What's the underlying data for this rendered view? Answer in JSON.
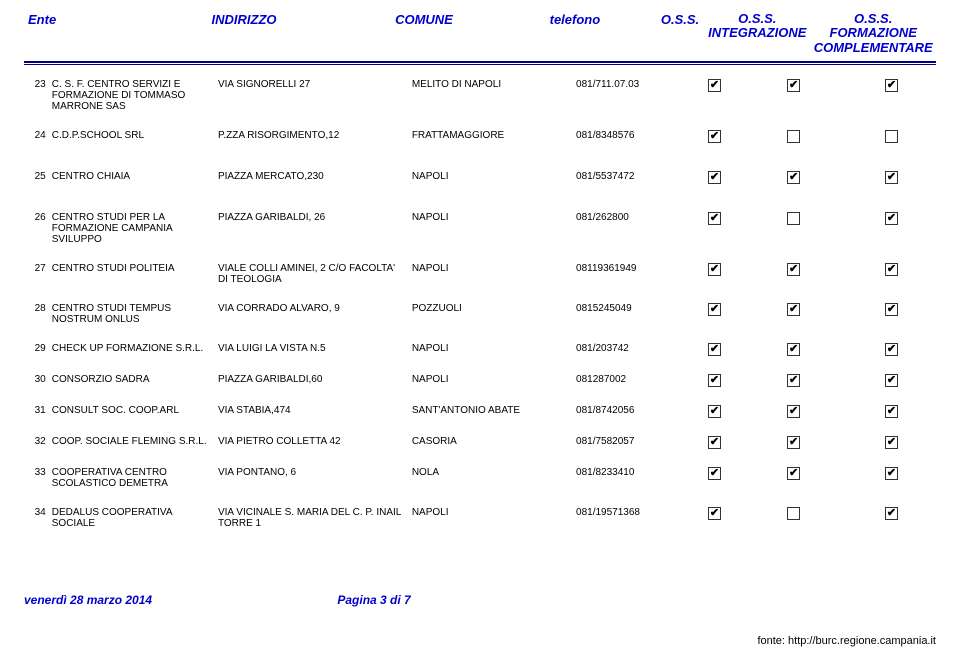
{
  "header": {
    "ente": "Ente",
    "indirizzo": "INDIRIZZO",
    "comune": "COMUNE",
    "telefono": "telefono",
    "oss": "O.S.S.",
    "integrazione_line1": "O.S.S.",
    "integrazione_line2": "INTEGRAZIONE",
    "complementare_line1": "O.S.S. FORMAZIONE",
    "complementare_line2": "COMPLEMENTARE"
  },
  "rows": [
    {
      "n": "23",
      "ente": "C. S. F. CENTRO SERVIZI E FORMAZIONE DI TOMMASO MARRONE SAS",
      "addr": "VIA SIGNORELLI 27",
      "comune": "MELITO DI NAPOLI",
      "tel": "081/711.07.03",
      "c1": true,
      "c2": true,
      "c3": true
    },
    {
      "n": "24",
      "ente": "C.D.P.SCHOOL SRL",
      "addr": "P.ZZA RISORGIMENTO,12",
      "comune": "FRATTAMAGGIORE",
      "tel": "081/8348576",
      "c1": true,
      "c2": false,
      "c3": false
    },
    {
      "n": "25",
      "ente": "CENTRO CHIAIA",
      "addr": "PIAZZA MERCATO,230",
      "comune": "NAPOLI",
      "tel": "081/5537472",
      "c1": true,
      "c2": true,
      "c3": true
    },
    {
      "n": "26",
      "ente": "CENTRO STUDI PER LA FORMAZIONE CAMPANIA SVILUPPO",
      "addr": "PIAZZA GARIBALDI, 26",
      "comune": "NAPOLI",
      "tel": "081/262800",
      "c1": true,
      "c2": false,
      "c3": true
    },
    {
      "n": "27",
      "ente": "CENTRO STUDI POLITEIA",
      "addr": "VIALE COLLI AMINEI, 2 C/O FACOLTA' DI TEOLOGIA",
      "comune": "NAPOLI",
      "tel": "08119361949",
      "c1": true,
      "c2": true,
      "c3": true
    },
    {
      "n": "28",
      "ente": "CENTRO STUDI TEMPUS NOSTRUM ONLUS",
      "addr": "VIA CORRADO ALVARO, 9",
      "comune": "POZZUOLI",
      "tel": "0815245049",
      "c1": true,
      "c2": true,
      "c3": true
    },
    {
      "n": "29",
      "ente": "CHECK UP FORMAZIONE S.R.L.",
      "addr": "VIA LUIGI LA VISTA N.5",
      "comune": "NAPOLI",
      "tel": "081/203742",
      "c1": true,
      "c2": true,
      "c3": true
    },
    {
      "n": "30",
      "ente": "CONSORZIO SADRA",
      "addr": "PIAZZA GARIBALDI,60",
      "comune": "NAPOLI",
      "tel": "081287002",
      "c1": true,
      "c2": true,
      "c3": true
    },
    {
      "n": "31",
      "ente": "CONSULT SOC. COOP.ARL",
      "addr": "VIA STABIA,474",
      "comune": "SANT'ANTONIO ABATE",
      "tel": "081/8742056",
      "c1": true,
      "c2": true,
      "c3": true
    },
    {
      "n": "32",
      "ente": "COOP. SOCIALE FLEMING S.R.L.",
      "addr": "VIA PIETRO COLLETTA 42",
      "comune": "CASORIA",
      "tel": "081/7582057",
      "c1": true,
      "c2": true,
      "c3": true
    },
    {
      "n": "33",
      "ente": "COOPERATIVA CENTRO SCOLASTICO DEMETRA",
      "addr": "VIA PONTANO, 6",
      "comune": "NOLA",
      "tel": "081/8233410",
      "c1": true,
      "c2": true,
      "c3": true
    },
    {
      "n": "34",
      "ente": "DEDALUS COOPERATIVA SOCIALE",
      "addr": "VIA VICINALE S. MARIA DEL C. P. INAIL TORRE 1",
      "comune": "NAPOLI",
      "tel": "081/19571368",
      "c1": true,
      "c2": false,
      "c3": true
    }
  ],
  "footer": {
    "date": "venerdì 28 marzo 2014",
    "page": "Pagina 3 di 7"
  },
  "source": "fonte: http://burc.regione.campania.it",
  "style": {
    "header_color": "#0000cc",
    "line_color": "#000080",
    "font_size_header": 13,
    "font_size_body": 10,
    "checkmark": "✔"
  }
}
